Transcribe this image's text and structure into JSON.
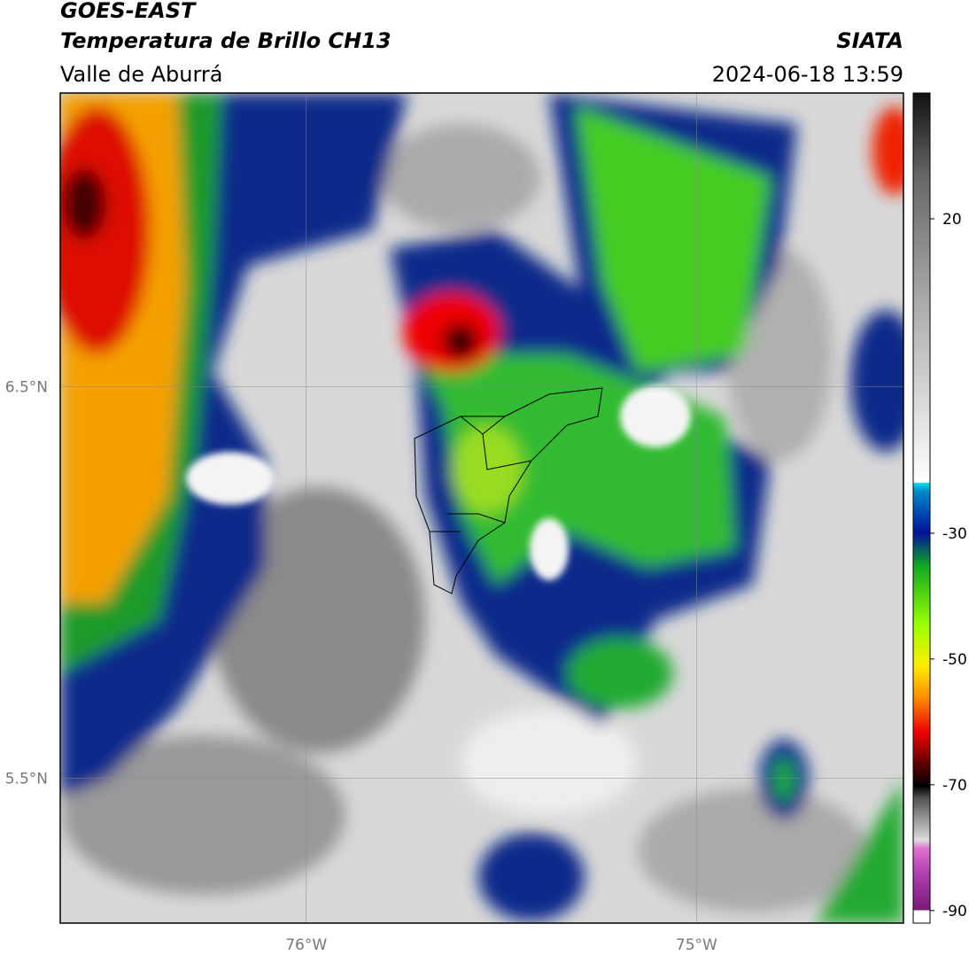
{
  "header": {
    "title": "GOES-EAST",
    "subtitle": "Temperatura de Brillo CH13",
    "region": "Valle de Aburrá",
    "org": "SIATA",
    "datetime": "2024-06-18 13:59"
  },
  "map": {
    "lonlim": [
      -76.63,
      -74.47
    ],
    "latlim": [
      5.13,
      7.25
    ],
    "lon_ticks": [
      {
        "value": -76,
        "label": "76°W"
      },
      {
        "value": -75,
        "label": "75°W"
      }
    ],
    "lat_ticks": [
      {
        "value": 6.5,
        "label": "6.5°N"
      },
      {
        "value": 5.5,
        "label": "5.5°N"
      }
    ]
  },
  "colorbar": {
    "lim": [
      -92,
      40
    ],
    "ticks": [
      20,
      -30,
      -50,
      -70,
      -90
    ]
  }
}
